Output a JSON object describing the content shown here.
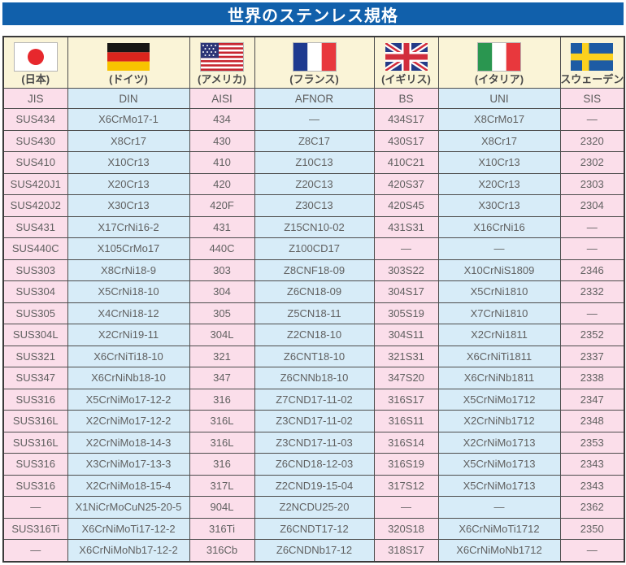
{
  "title": "世界のステンレス規格",
  "colors": {
    "title_bar": "#1160ab",
    "column_pink": "#fbdeea",
    "column_blue": "#d7ecf8",
    "flag_row_cream": "#faf4d7",
    "grid_border": "#4d4d4d"
  },
  "table": {
    "columns": [
      {
        "country": "(日本)",
        "flag": "japan-flag-icon",
        "code": "JIS"
      },
      {
        "country": "(ドイツ)",
        "flag": "germany-flag-icon",
        "code": "DIN"
      },
      {
        "country": "(アメリカ)",
        "flag": "usa-flag-icon",
        "code": "AISI"
      },
      {
        "country": "(フランス)",
        "flag": "france-flag-icon",
        "code": "AFNOR"
      },
      {
        "country": "(イギリス)",
        "flag": "uk-flag-icon",
        "code": "BS"
      },
      {
        "country": "(イタリア)",
        "flag": "italy-flag-icon",
        "code": "UNI"
      },
      {
        "country": "(スウェーデン)",
        "flag": "sweden-flag-icon",
        "code": "SIS"
      }
    ],
    "rows": [
      [
        "SUS434",
        "X6CrMo17-1",
        "434",
        "—",
        "434S17",
        "X8CrMo17",
        "—"
      ],
      [
        "SUS430",
        "X8Cr17",
        "430",
        "Z8C17",
        "430S17",
        "X8Cr17",
        "2320"
      ],
      [
        "SUS410",
        "X10Cr13",
        "410",
        "Z10C13",
        "410C21",
        "X10Cr13",
        "2302"
      ],
      [
        "SUS420J1",
        "X20Cr13",
        "420",
        "Z20C13",
        "420S37",
        "X20Cr13",
        "2303"
      ],
      [
        "SUS420J2",
        "X30Cr13",
        "420F",
        "Z30C13",
        "420S45",
        "X30Cr13",
        "2304"
      ],
      [
        "SUS431",
        "X17CrNi16-2",
        "431",
        "Z15CN10-02",
        "431S31",
        "X16CrNi16",
        "—"
      ],
      [
        "SUS440C",
        "X105CrMo17",
        "440C",
        "Z100CD17",
        "—",
        "—",
        "—"
      ],
      [
        "SUS303",
        "X8CrNi18-9",
        "303",
        "Z8CNF18-09",
        "303S22",
        "X10CrNiS1809",
        "2346"
      ],
      [
        "SUS304",
        "X5CrNi18-10",
        "304",
        "Z6CN18-09",
        "304S17",
        "X5CrNi1810",
        "2332"
      ],
      [
        "SUS305",
        "X4CrNi18-12",
        "305",
        "Z5CN18-11",
        "305S19",
        "X7CrNi1810",
        "—"
      ],
      [
        "SUS304L",
        "X2CrNi19-11",
        "304L",
        "Z2CN18-10",
        "304S11",
        "X2CrNi1811",
        "2352"
      ],
      [
        "SUS321",
        "X6CrNiTi18-10",
        "321",
        "Z6CNT18-10",
        "321S31",
        "X6CrNiTi1811",
        "2337"
      ],
      [
        "SUS347",
        "X6CrNiNb18-10",
        "347",
        "Z6CNNb18-10",
        "347S20",
        "X6CrNiNb1811",
        "2338"
      ],
      [
        "SUS316",
        "X5CrNiMo17-12-2",
        "316",
        "Z7CND17-11-02",
        "316S17",
        "X5CrNiMo1712",
        "2347"
      ],
      [
        "SUS316L",
        "X2CrNiMo17-12-2",
        "316L",
        "Z3CND17-11-02",
        "316S11",
        "X2CrNiNb1712",
        "2348"
      ],
      [
        "SUS316L",
        "X2CrNiMo18-14-3",
        "316L",
        "Z3CND17-11-03",
        "316S14",
        "X2CrNiMo1713",
        "2353"
      ],
      [
        "SUS316",
        "X3CrNiMo17-13-3",
        "316",
        "Z6CND18-12-03",
        "316S19",
        "X5CrNiMo1713",
        "2343"
      ],
      [
        "SUS316",
        "X2CrNiMo18-15-4",
        "317L",
        "Z2CND19-15-04",
        "317S12",
        "X5CrNiMo1713",
        "2343"
      ],
      [
        "—",
        "X1NiCrMoCuN25-20-5",
        "904L",
        "Z2NCDU25-20",
        "—",
        "—",
        "2362"
      ],
      [
        "SUS316Ti",
        "X6CrNiMoTi17-12-2",
        "316Ti",
        "Z6CNDT17-12",
        "320S18",
        "X6CrNiMoTi1712",
        "2350"
      ],
      [
        "—",
        "X6CrNiMoNb17-12-2",
        "316Cb",
        "Z6CNDNb17-12",
        "318S17",
        "X6CrNiMoNb1712",
        "—"
      ]
    ]
  }
}
